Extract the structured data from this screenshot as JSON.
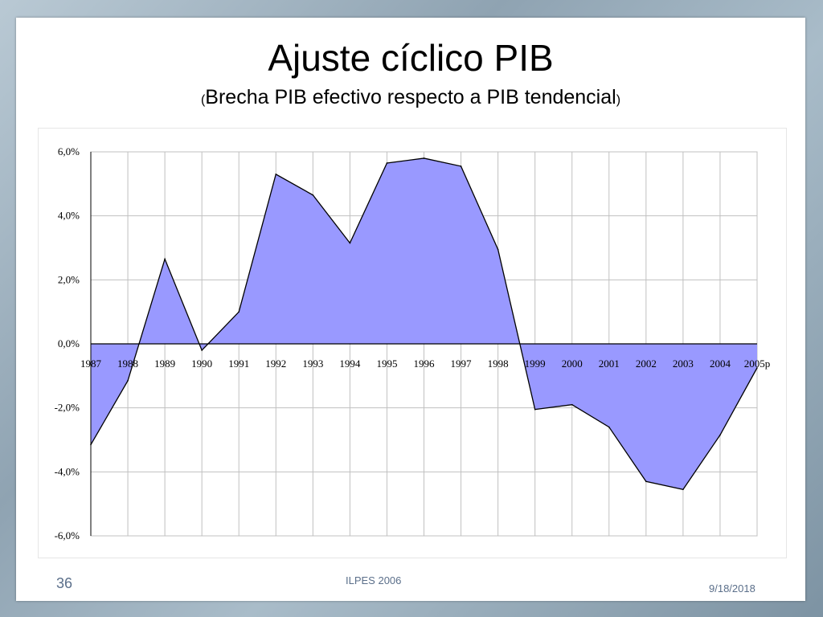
{
  "slide": {
    "title": "Ajuste cíclico PIB",
    "subtitle_open": "(",
    "subtitle": "Brecha PIB efectivo respecto a PIB tendencial",
    "subtitle_close": ")",
    "slide_number": "36",
    "footer_center": "ILPES 2006",
    "footer_date": "9/18/2018"
  },
  "colors": {
    "area_fill": "#9999ff",
    "area_stroke": "#000000",
    "grid": "#c0c0c0"
  },
  "chart_data": {
    "type": "area",
    "categories": [
      "1987",
      "1988",
      "1989",
      "1990",
      "1991",
      "1992",
      "1993",
      "1994",
      "1995",
      "1996",
      "1997",
      "1998",
      "1999",
      "2000",
      "2001",
      "2002",
      "2003",
      "2004",
      "2005p"
    ],
    "values": [
      -3.15,
      -1.15,
      2.65,
      -0.2,
      1.0,
      5.3,
      4.65,
      3.15,
      5.65,
      5.8,
      5.55,
      2.95,
      -2.05,
      -1.9,
      -2.6,
      -4.3,
      -4.55,
      -2.85,
      -0.75
    ],
    "unit": "%",
    "ylim": [
      -6.0,
      6.0
    ],
    "yticks": [
      "6,0%",
      "4,0%",
      "2,0%",
      "0,0%",
      "-2,0%",
      "-4,0%",
      "-6,0%"
    ],
    "ytick_values": [
      6,
      4,
      2,
      0,
      -2,
      -4,
      -6
    ],
    "grid": true,
    "legend": false,
    "xlabel": "",
    "ylabel": ""
  }
}
